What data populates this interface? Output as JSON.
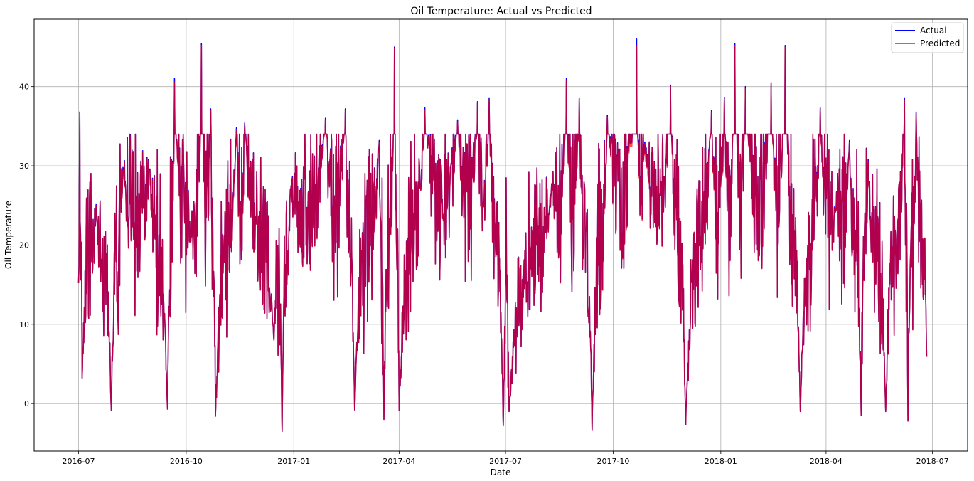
{
  "chart_data": {
    "type": "line",
    "title": "Oil Temperature: Actual vs Predicted",
    "xlabel": "Date",
    "ylabel": "Oil Temperature",
    "x_range": [
      "2016-07-01",
      "2018-06-26"
    ],
    "xlim": [
      "2016-05-24",
      "2018-07-31"
    ],
    "ylim": [
      -6,
      48.5
    ],
    "x_ticks": [
      "2016-07",
      "2016-10",
      "2017-01",
      "2017-04",
      "2017-07",
      "2017-10",
      "2018-01",
      "2018-04",
      "2018-07"
    ],
    "x_tick_dates": [
      "2016-07-01",
      "2016-10-01",
      "2017-01-01",
      "2017-04-01",
      "2017-07-01",
      "2017-10-01",
      "2018-01-01",
      "2018-04-01",
      "2018-07-01"
    ],
    "y_ticks": [
      "0",
      "10",
      "20",
      "30",
      "40"
    ],
    "y_tick_values": [
      0,
      10,
      20,
      30,
      40
    ],
    "grid": true,
    "legend_position": "top-right",
    "series": [
      {
        "name": "Actual",
        "color": "#0000ff",
        "peaks": [
          {
            "x": "2016-07-01",
            "y": 15.2
          },
          {
            "x": "2016-07-02",
            "y": 36.8
          },
          {
            "x": "2016-07-04",
            "y": 3.2
          },
          {
            "x": "2016-07-16",
            "y": 25.1
          },
          {
            "x": "2016-07-29",
            "y": -0.9
          },
          {
            "x": "2016-08-08",
            "y": 29.8
          },
          {
            "x": "2016-08-31",
            "y": 29.6
          },
          {
            "x": "2016-09-15",
            "y": -0.7
          },
          {
            "x": "2016-09-21",
            "y": 41.0
          },
          {
            "x": "2016-10-05",
            "y": 20.5
          },
          {
            "x": "2016-10-14",
            "y": 45.4
          },
          {
            "x": "2016-10-22",
            "y": 37.2
          },
          {
            "x": "2016-10-26",
            "y": -1.6
          },
          {
            "x": "2016-11-13",
            "y": 34.8
          },
          {
            "x": "2016-11-20",
            "y": 35.4
          },
          {
            "x": "2016-12-15",
            "y": 8.0
          },
          {
            "x": "2016-12-22",
            "y": -3.5
          },
          {
            "x": "2016-12-29",
            "y": 27.0
          },
          {
            "x": "2017-01-28",
            "y": 36.0
          },
          {
            "x": "2017-02-14",
            "y": 37.2
          },
          {
            "x": "2017-02-22",
            "y": -0.8
          },
          {
            "x": "2017-03-15",
            "y": 33.2
          },
          {
            "x": "2017-03-19",
            "y": -2.0
          },
          {
            "x": "2017-03-28",
            "y": 45.0
          },
          {
            "x": "2017-04-01",
            "y": -0.9
          },
          {
            "x": "2017-04-23",
            "y": 37.3
          },
          {
            "x": "2017-05-21",
            "y": 35.8
          },
          {
            "x": "2017-06-07",
            "y": 38.1
          },
          {
            "x": "2017-06-17",
            "y": 38.5
          },
          {
            "x": "2017-06-29",
            "y": -2.8
          },
          {
            "x": "2017-07-04",
            "y": -1.0
          },
          {
            "x": "2017-08-10",
            "y": 27.9
          },
          {
            "x": "2017-08-22",
            "y": 41.0
          },
          {
            "x": "2017-09-02",
            "y": 38.5
          },
          {
            "x": "2017-09-13",
            "y": -3.4
          },
          {
            "x": "2017-09-26",
            "y": 36.4
          },
          {
            "x": "2017-10-21",
            "y": 46.0
          },
          {
            "x": "2017-10-28",
            "y": 33.0
          },
          {
            "x": "2017-11-19",
            "y": 40.2
          },
          {
            "x": "2017-12-02",
            "y": -2.7
          },
          {
            "x": "2017-12-24",
            "y": 37.0
          },
          {
            "x": "2018-01-04",
            "y": 38.6
          },
          {
            "x": "2018-01-13",
            "y": 45.4
          },
          {
            "x": "2018-01-22",
            "y": 40.0
          },
          {
            "x": "2018-02-13",
            "y": 40.5
          },
          {
            "x": "2018-02-25",
            "y": 45.2
          },
          {
            "x": "2018-03-10",
            "y": -1.0
          },
          {
            "x": "2018-03-27",
            "y": 37.3
          },
          {
            "x": "2018-04-09",
            "y": 24.2
          },
          {
            "x": "2018-04-21",
            "y": 33.2
          },
          {
            "x": "2018-05-01",
            "y": -1.5
          },
          {
            "x": "2018-05-07",
            "y": 30.8
          },
          {
            "x": "2018-05-22",
            "y": -1.0
          },
          {
            "x": "2018-06-07",
            "y": 38.5
          },
          {
            "x": "2018-06-10",
            "y": -2.2
          },
          {
            "x": "2018-06-17",
            "y": 36.8
          },
          {
            "x": "2018-06-26",
            "y": 5.9
          }
        ]
      },
      {
        "name": "Predicted",
        "color": "#ff0000",
        "opacity": 0.7,
        "peaks": [
          {
            "x": "2016-07-01",
            "y": 15.2
          },
          {
            "x": "2016-07-02",
            "y": 36.5
          },
          {
            "x": "2016-07-04",
            "y": 3.2
          },
          {
            "x": "2016-07-16",
            "y": 25.0
          },
          {
            "x": "2016-07-29",
            "y": -0.9
          },
          {
            "x": "2016-08-08",
            "y": 29.6
          },
          {
            "x": "2016-08-31",
            "y": 29.4
          },
          {
            "x": "2016-09-15",
            "y": -0.7
          },
          {
            "x": "2016-09-21",
            "y": 40.6
          },
          {
            "x": "2016-10-05",
            "y": 20.4
          },
          {
            "x": "2016-10-14",
            "y": 45.2
          },
          {
            "x": "2016-10-22",
            "y": 37.0
          },
          {
            "x": "2016-10-26",
            "y": -1.6
          },
          {
            "x": "2016-11-13",
            "y": 34.6
          },
          {
            "x": "2016-11-20",
            "y": 35.2
          },
          {
            "x": "2016-12-15",
            "y": 8.0
          },
          {
            "x": "2016-12-22",
            "y": -3.5
          },
          {
            "x": "2016-12-29",
            "y": 26.9
          },
          {
            "x": "2017-01-28",
            "y": 35.8
          },
          {
            "x": "2017-02-14",
            "y": 37.0
          },
          {
            "x": "2017-02-22",
            "y": -0.8
          },
          {
            "x": "2017-03-15",
            "y": 33.0
          },
          {
            "x": "2017-03-19",
            "y": -2.0
          },
          {
            "x": "2017-03-28",
            "y": 44.8
          },
          {
            "x": "2017-04-01",
            "y": -0.9
          },
          {
            "x": "2017-04-23",
            "y": 37.1
          },
          {
            "x": "2017-05-21",
            "y": 35.6
          },
          {
            "x": "2017-06-07",
            "y": 37.9
          },
          {
            "x": "2017-06-17",
            "y": 38.3
          },
          {
            "x": "2017-06-29",
            "y": -2.8
          },
          {
            "x": "2017-07-04",
            "y": -1.0
          },
          {
            "x": "2017-08-10",
            "y": 27.8
          },
          {
            "x": "2017-08-22",
            "y": 40.7
          },
          {
            "x": "2017-09-02",
            "y": 38.3
          },
          {
            "x": "2017-09-13",
            "y": -3.4
          },
          {
            "x": "2017-09-26",
            "y": 36.2
          },
          {
            "x": "2017-10-21",
            "y": 45.2
          },
          {
            "x": "2017-10-28",
            "y": 32.8
          },
          {
            "x": "2017-11-19",
            "y": 40.0
          },
          {
            "x": "2017-12-02",
            "y": -2.7
          },
          {
            "x": "2017-12-24",
            "y": 36.8
          },
          {
            "x": "2018-01-04",
            "y": 38.4
          },
          {
            "x": "2018-01-13",
            "y": 45.2
          },
          {
            "x": "2018-01-22",
            "y": 39.8
          },
          {
            "x": "2018-02-13",
            "y": 40.3
          },
          {
            "x": "2018-02-25",
            "y": 45.0
          },
          {
            "x": "2018-03-10",
            "y": -1.0
          },
          {
            "x": "2018-03-27",
            "y": 37.1
          },
          {
            "x": "2018-04-09",
            "y": 24.1
          },
          {
            "x": "2018-04-21",
            "y": 33.0
          },
          {
            "x": "2018-05-01",
            "y": -1.5
          },
          {
            "x": "2018-05-07",
            "y": 30.6
          },
          {
            "x": "2018-05-22",
            "y": -1.0
          },
          {
            "x": "2018-06-07",
            "y": 38.3
          },
          {
            "x": "2018-06-10",
            "y": -2.2
          },
          {
            "x": "2018-06-17",
            "y": 36.6
          },
          {
            "x": "2018-06-26",
            "y": 5.9
          }
        ]
      }
    ]
  }
}
